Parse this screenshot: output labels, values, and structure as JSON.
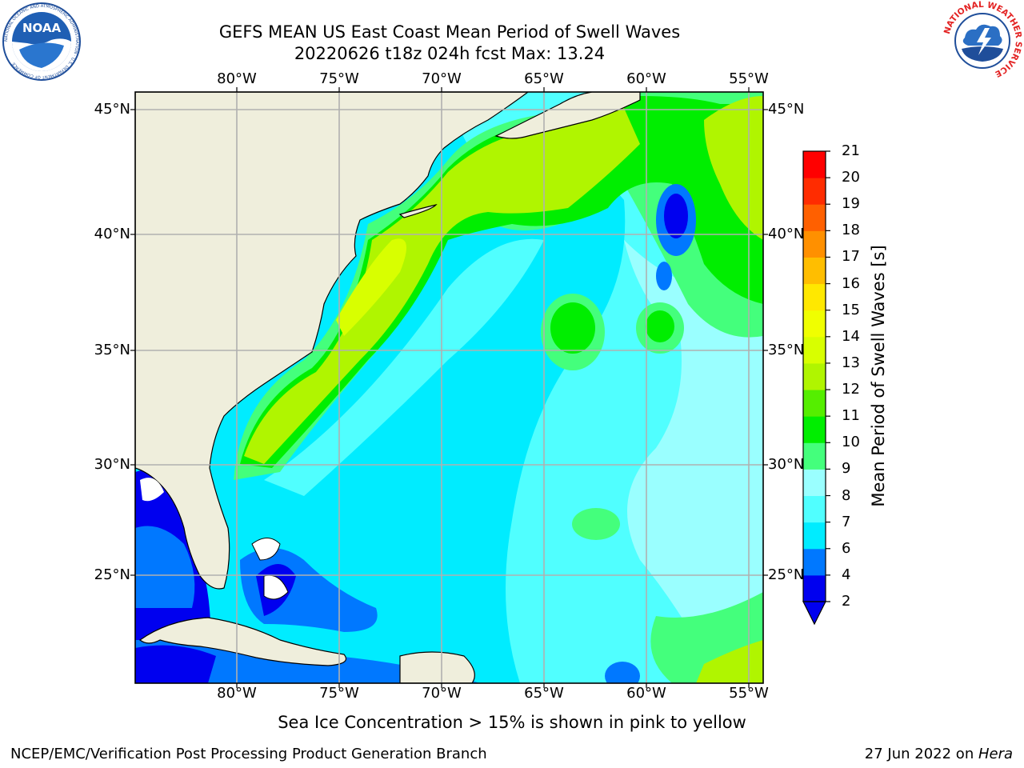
{
  "title_line1": "GEFS MEAN US East Coast Mean Period of Swell Waves",
  "title_line2": "20220626 t18z 024h fcst   Max: 13.24",
  "logos": {
    "left": {
      "name": "noaa-logo",
      "text": "NOAA",
      "ring_text": "NATIONAL OCEANIC AND ATMOSPHERIC ADMINISTRATION · U.S. DEPARTMENT OF COMMERCE",
      "color": "#1f4e9a"
    },
    "right": {
      "name": "nws-logo",
      "ring_text": "NATIONAL WEATHER SERVICE",
      "color": "#e32323"
    }
  },
  "map": {
    "lon_ticks": [
      "80°W",
      "75°W",
      "70°W",
      "65°W",
      "60°W",
      "55°W"
    ],
    "lat_ticks": [
      "45°N",
      "40°N",
      "35°N",
      "30°N",
      "25°N"
    ],
    "land_color": "#efeedc",
    "grid_color": "#b0b0b0"
  },
  "colorbar": {
    "title": "Mean Period of Swell Waves [s]",
    "levels": [
      "2",
      "4",
      "6",
      "7",
      "8",
      "9",
      "10",
      "11",
      "12",
      "13",
      "14",
      "15",
      "16",
      "17",
      "18",
      "19",
      "20",
      "21"
    ],
    "colors": [
      "#0000ef",
      "#0078ff",
      "#00ecff",
      "#50ffff",
      "#9affff",
      "#44ff7c",
      "#00ee00",
      "#55ee00",
      "#b0f500",
      "#d8ff00",
      "#f0ff00",
      "#ffe800",
      "#ffbe00",
      "#ff9000",
      "#ff6000",
      "#ff2c00",
      "#ff0000"
    ]
  },
  "sea_ice_note": "Sea Ice Concentration > 15% is shown in pink to yellow",
  "footer_left": "NCEP/EMC/Verification Post Processing Product Generation Branch",
  "footer_right_date": "27 Jun 2022 on ",
  "footer_right_host": "Hera"
}
